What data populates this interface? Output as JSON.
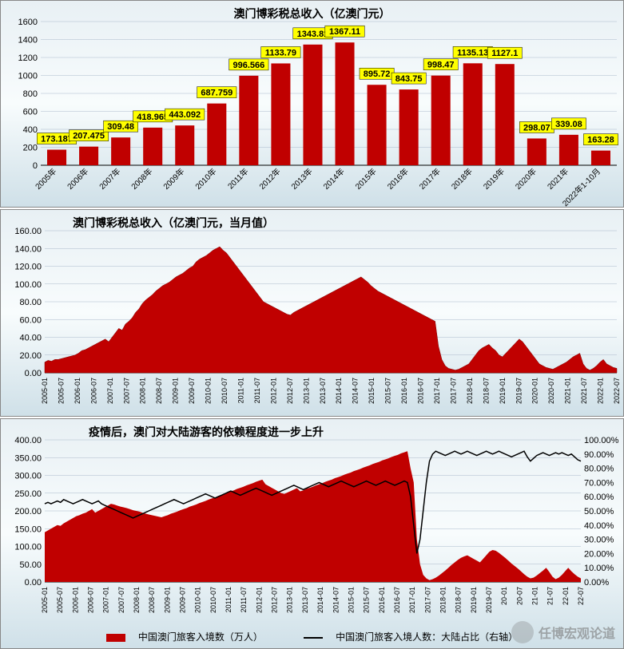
{
  "chart1": {
    "type": "bar",
    "title": "澳门博彩税总收入（亿澳门元）",
    "title_fontsize": 14,
    "categories": [
      "2005年",
      "2006年",
      "2007年",
      "2008年",
      "2009年",
      "2010年",
      "2011年",
      "2012年",
      "2013年",
      "2014年",
      "2015年",
      "2016年",
      "2017年",
      "2018年",
      "2019年",
      "2020年",
      "2021年",
      "2022年1-10月"
    ],
    "values": [
      173.187,
      207.475,
      309.48,
      418.965,
      443.092,
      687.759,
      996.566,
      1133.79,
      1343.81,
      1367.11,
      895.72,
      843.75,
      998.47,
      1135.13,
      1127.1,
      298.07,
      339.08,
      163.28
    ],
    "bar_color": "#c00000",
    "label_bg": "#ffff00",
    "label_border": "#000000",
    "label_fontsize": 11,
    "ylim": [
      0,
      1600
    ],
    "ytick_step": 200,
    "background_gradient": [
      "#e8f0f4",
      "#f8fcfd",
      "#cfe0e8"
    ],
    "grid_color": "#aabacb",
    "axis_color": "#000000",
    "xlabel_rotation": -45,
    "bar_width_ratio": 0.6
  },
  "chart2": {
    "type": "area",
    "title": "澳门博彩税总收入（亿澳门元，当月值）",
    "title_fontsize": 14,
    "fill_color": "#c00000",
    "line_color": "#800000",
    "x_labels": [
      "2005-01",
      "2005-07",
      "2006-01",
      "2006-07",
      "2007-01",
      "2007-07",
      "2008-01",
      "2008-07",
      "2009-01",
      "2009-07",
      "2010-01",
      "2010-07",
      "2011-01",
      "2011-07",
      "2012-01",
      "2012-07",
      "2013-01",
      "2013-07",
      "2014-01",
      "2014-07",
      "2015-01",
      "2015-07",
      "2016-01",
      "2016-07",
      "2017-01",
      "2017-07",
      "2018-01",
      "2018-07",
      "2019-01",
      "2019-07",
      "2020-01",
      "2020-07",
      "2021-01",
      "2021-07",
      "2022-01",
      "2022-07"
    ],
    "values": [
      12,
      14,
      13,
      15,
      15,
      16,
      17,
      18,
      19,
      20,
      22,
      25,
      26,
      28,
      30,
      32,
      34,
      36,
      38,
      35,
      40,
      45,
      50,
      48,
      55,
      58,
      62,
      68,
      72,
      78,
      82,
      85,
      88,
      92,
      95,
      98,
      100,
      102,
      105,
      108,
      110,
      112,
      115,
      118,
      120,
      125,
      128,
      130,
      132,
      135,
      138,
      140,
      142,
      138,
      135,
      130,
      125,
      120,
      115,
      110,
      105,
      100,
      95,
      90,
      85,
      80,
      78,
      76,
      74,
      72,
      70,
      68,
      66,
      65,
      68,
      70,
      72,
      74,
      76,
      78,
      80,
      82,
      84,
      86,
      88,
      90,
      92,
      94,
      96,
      98,
      100,
      102,
      104,
      106,
      108,
      105,
      102,
      98,
      95,
      92,
      90,
      88,
      86,
      84,
      82,
      80,
      78,
      76,
      74,
      72,
      70,
      68,
      66,
      64,
      62,
      60,
      58,
      30,
      15,
      8,
      5,
      4,
      3,
      4,
      6,
      8,
      10,
      15,
      20,
      25,
      28,
      30,
      32,
      28,
      25,
      20,
      18,
      22,
      26,
      30,
      34,
      38,
      35,
      30,
      25,
      20,
      15,
      10,
      8,
      6,
      5,
      4,
      6,
      8,
      10,
      12,
      15,
      18,
      20,
      22,
      10,
      5,
      3,
      5,
      8,
      12,
      15,
      10,
      8,
      6,
      5
    ],
    "ylim": [
      0,
      160
    ],
    "ytick_step": 20,
    "y_format": "fixed2",
    "background_gradient": [
      "#e8f0f4",
      "#f8fcfd",
      "#cfe0e8"
    ],
    "grid_color": "#aabacb",
    "xlabel_rotation": -90
  },
  "chart3": {
    "type": "combo_area_line",
    "title": "疫情后，澳门对大陆游客的依赖程度进一步上升",
    "title_fontsize": 14,
    "area_fill_color": "#c00000",
    "line_color": "#000000",
    "line_width": 1.5,
    "x_labels": [
      "2005-01",
      "2005-07",
      "2006-01",
      "2006-07",
      "2007-01",
      "2007-07",
      "2008-01",
      "2008-07",
      "2009-01",
      "2009-07",
      "2010-01",
      "2010-07",
      "2011-01",
      "2011-07",
      "2012-01",
      "2012-07",
      "2013-01",
      "2013-07",
      "2014-01",
      "2014-07",
      "2015-01",
      "2015-07",
      "2016-01",
      "2016-07",
      "2017-01",
      "2017-07",
      "2018-01",
      "2018-07",
      "2019-01",
      "2019-07",
      "20-01",
      "20-07",
      "21-01",
      "21-07",
      "22-01",
      "22-07"
    ],
    "area_values": [
      140,
      145,
      150,
      155,
      160,
      158,
      165,
      170,
      175,
      180,
      185,
      188,
      192,
      195,
      200,
      205,
      195,
      200,
      205,
      210,
      215,
      220,
      218,
      215,
      212,
      210,
      208,
      205,
      202,
      200,
      198,
      195,
      192,
      190,
      188,
      186,
      184,
      182,
      185,
      188,
      192,
      195,
      198,
      202,
      205,
      208,
      212,
      215,
      218,
      222,
      225,
      228,
      232,
      235,
      238,
      242,
      245,
      248,
      252,
      255,
      258,
      262,
      265,
      268,
      272,
      275,
      278,
      282,
      285,
      288,
      275,
      270,
      265,
      260,
      255,
      250,
      248,
      252,
      256,
      260,
      264,
      255,
      258,
      262,
      265,
      268,
      272,
      275,
      278,
      282,
      285,
      288,
      292,
      295,
      298,
      302,
      305,
      308,
      312,
      315,
      318,
      322,
      325,
      328,
      332,
      335,
      338,
      342,
      345,
      348,
      352,
      355,
      358,
      362,
      365,
      368,
      320,
      280,
      120,
      50,
      20,
      10,
      5,
      8,
      12,
      18,
      25,
      32,
      40,
      48,
      55,
      62,
      68,
      72,
      75,
      70,
      65,
      60,
      55,
      65,
      75,
      85,
      90,
      88,
      82,
      75,
      68,
      60,
      52,
      45,
      38,
      30,
      22,
      15,
      10,
      12,
      18,
      25,
      32,
      40,
      28,
      15,
      8,
      12,
      20,
      30,
      40,
      30,
      22,
      15,
      10
    ],
    "line_values": [
      55,
      56,
      55,
      56,
      57,
      56,
      58,
      57,
      56,
      55,
      56,
      57,
      58,
      57,
      56,
      55,
      56,
      57,
      55,
      54,
      53,
      52,
      51,
      50,
      49,
      48,
      47,
      46,
      45,
      46,
      47,
      48,
      49,
      50,
      51,
      52,
      53,
      54,
      55,
      56,
      57,
      58,
      57,
      56,
      55,
      56,
      57,
      58,
      59,
      60,
      61,
      62,
      61,
      60,
      59,
      60,
      61,
      62,
      63,
      64,
      63,
      62,
      61,
      62,
      63,
      64,
      65,
      66,
      65,
      64,
      63,
      62,
      61,
      62,
      63,
      64,
      65,
      66,
      67,
      68,
      67,
      66,
      65,
      66,
      67,
      68,
      69,
      70,
      69,
      68,
      67,
      68,
      69,
      70,
      71,
      70,
      69,
      68,
      67,
      68,
      69,
      70,
      71,
      70,
      69,
      68,
      69,
      70,
      71,
      70,
      69,
      68,
      69,
      70,
      71,
      70,
      60,
      40,
      20,
      30,
      50,
      70,
      85,
      90,
      92,
      91,
      90,
      89,
      90,
      91,
      92,
      91,
      90,
      91,
      92,
      91,
      90,
      89,
      90,
      91,
      92,
      91,
      90,
      91,
      92,
      91,
      90,
      89,
      88,
      89,
      90,
      91,
      92,
      88,
      85,
      87,
      89,
      90,
      91,
      90,
      89,
      90,
      91,
      90,
      91,
      90,
      89,
      90,
      88,
      86,
      85
    ],
    "y1_lim": [
      0,
      400
    ],
    "y1_tick_step": 50,
    "y1_format": "fixed2",
    "y2_lim": [
      0,
      100
    ],
    "y2_tick_step": 10,
    "y2_format": "percent2",
    "background_gradient": [
      "#e8f0f4",
      "#f8fcfd",
      "#cfe0e8"
    ],
    "grid_color": "#aabacb",
    "xlabel_rotation": -90,
    "legend": {
      "area_label": "中国澳门旅客入境数（万人）",
      "line_label": "中国澳门旅客入境人数：大陆占比（右轴）"
    }
  },
  "watermark": "任博宏观论道"
}
